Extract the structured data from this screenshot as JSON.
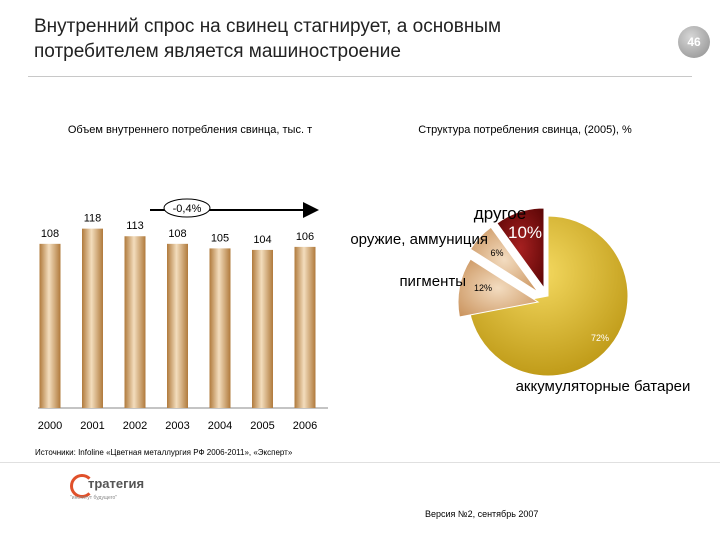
{
  "page": {
    "title_line1": "Внутренний спрос на свинец стагнирует, а основным",
    "title_line2": "потребителем является машиностроение",
    "page_number": "46",
    "source": "Источники: Infoline «Цветная металлургия РФ 2006-2011», «Эксперт»",
    "version": "Версия №2, сентябрь 2007",
    "logo_text": "тратегия",
    "logo_sub": "\"институт будущего\""
  },
  "colors": {
    "bar_fill": "#c9924e",
    "bar_highlight": "#f3ddbd",
    "pie_gold": "#d4b01c",
    "pie_tan": "#d8aa7a",
    "pie_darkred": "#7a0c0c",
    "accent": "#e0502a"
  },
  "chart_data": [
    {
      "type": "bar",
      "title": "Объем внутреннего потребления свинца, тыс. т",
      "categories": [
        "2000",
        "2001",
        "2002",
        "2003",
        "2004",
        "2005",
        "2006"
      ],
      "values": [
        108,
        118,
        113,
        108,
        105,
        104,
        106
      ],
      "annotation": "-0,4%",
      "ylim": [
        0,
        125
      ]
    },
    {
      "type": "pie",
      "title": "Структура потребления свинца, (2005), %",
      "slices": [
        {
          "label": "аккумуляторные батареи",
          "value": 72,
          "value_label": "72%",
          "color": "#d4b01c"
        },
        {
          "label": "пигменты",
          "value": 12,
          "value_label": "12%",
          "color": "#d8aa7a"
        },
        {
          "label": "оружие, аммуниция",
          "value": 6,
          "value_label": "6%",
          "color": "#d8aa7a"
        },
        {
          "label": "другое",
          "value": 10,
          "value_label": "10%",
          "color": "#7a0c0c"
        }
      ]
    }
  ]
}
